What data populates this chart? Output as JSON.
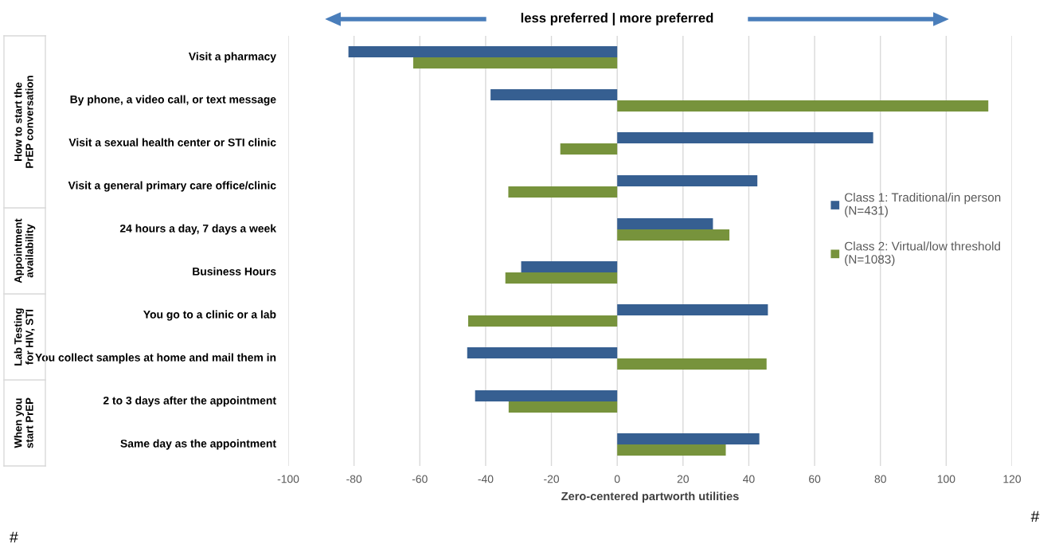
{
  "chart_data": {
    "type": "bar",
    "orientation": "horizontal",
    "xlabel": "Zero-centered partworth utilities",
    "categories": [
      "Visit a pharmacy",
      "By phone, a video call, or text message",
      "Visit a sexual health center or STI clinic",
      "Visit a general primary care office/clinic",
      "24 hours a day, 7 days a week",
      "Business Hours",
      "You go to a clinic or a lab",
      "You collect samples at home and mail them in",
      "2 to 3 days after the appointment",
      "Same day as the appointment"
    ],
    "series": [
      {
        "name": "Class 1: Traditional/in person (N=431)",
        "color": "#365f91",
        "values": [
          -81.7,
          -38.5,
          77.8,
          42.6,
          29.1,
          -29.2,
          45.8,
          -45.6,
          -43.2,
          43.2
        ]
      },
      {
        "name": "Class 2: Virtual/low threshold (N=1083)",
        "color": "#77933c",
        "values": [
          -62.0,
          112.8,
          -17.3,
          -33.1,
          34.1,
          -34.0,
          -45.3,
          45.4,
          -33.0,
          33.0
        ]
      }
    ],
    "xlim": [
      -100,
      120
    ],
    "xticks": [
      -100,
      -80,
      -60,
      -40,
      -20,
      0,
      20,
      40,
      60,
      80,
      100,
      120
    ],
    "grid": "x",
    "legend": "right",
    "annotations": [
      "less preferred | more preferred",
      "How to start the PrEP conversation",
      "Appointment availability",
      "Lab Testing for HIV, STI",
      "When you start PrEP",
      "#",
      "#"
    ]
  }
}
